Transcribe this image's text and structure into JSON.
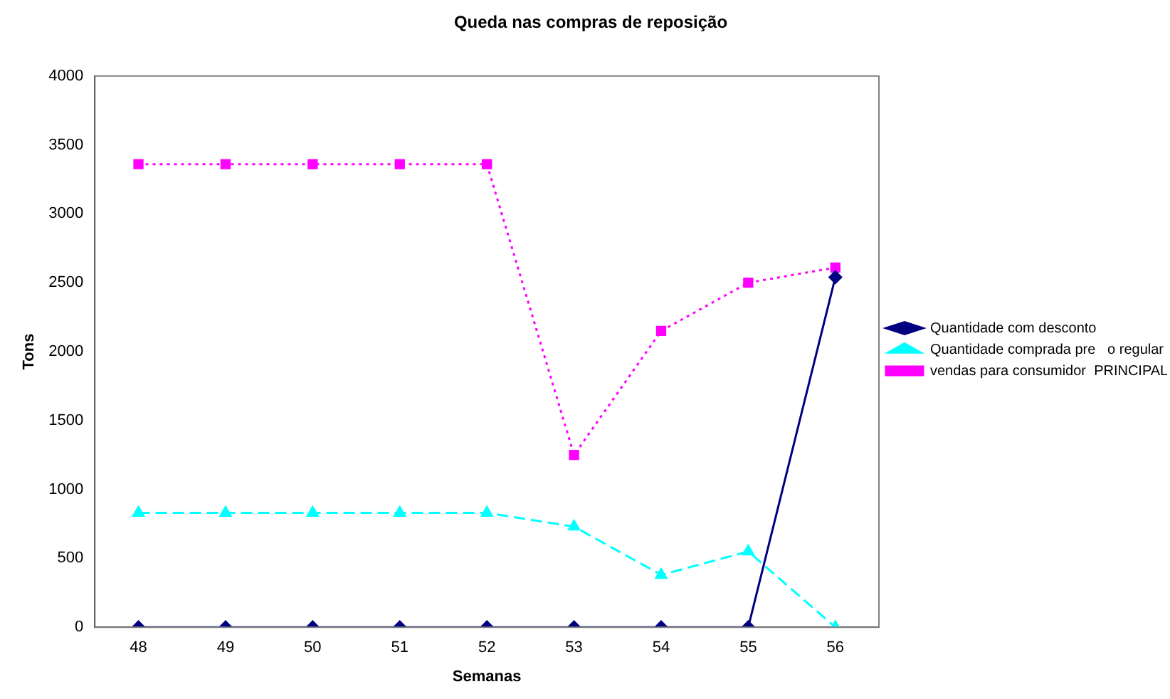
{
  "chart_data": {
    "type": "line",
    "title": "Queda nas compras de reposição",
    "xlabel": "Semanas",
    "ylabel": "Tons",
    "categories": [
      "48",
      "49",
      "50",
      "51",
      "52",
      "53",
      "54",
      "55",
      "56"
    ],
    "series": [
      {
        "name": "Quantidade com desconto",
        "color": "#000080",
        "marker": "diamond",
        "line_style": "solid",
        "values": [
          0,
          0,
          0,
          0,
          0,
          0,
          0,
          0,
          2540
        ]
      },
      {
        "name": "Quantidade comprada pre   o regular",
        "color": "#00ffff",
        "marker": "triangle",
        "line_style": "dashed",
        "values": [
          830,
          830,
          830,
          830,
          830,
          730,
          380,
          550,
          0
        ]
      },
      {
        "name": "vendas para consumidor  PRINCIPAL",
        "color": "#ff00ff",
        "marker": "square",
        "line_style": "dotted",
        "values": [
          3360,
          3360,
          3360,
          3360,
          3360,
          1250,
          2150,
          2500,
          2610
        ]
      }
    ],
    "ylim": [
      0,
      4000
    ],
    "yticks": [
      0,
      500,
      1000,
      1500,
      2000,
      2500,
      3000,
      3500,
      4000
    ],
    "grid": false,
    "legend": "right"
  }
}
